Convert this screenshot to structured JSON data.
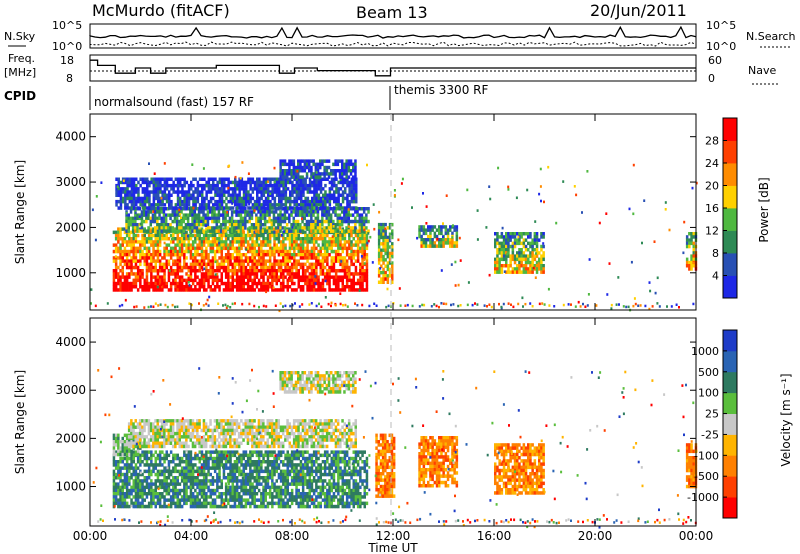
{
  "header": {
    "station": "McMurdo (fitACF)",
    "beam": "Beam 13",
    "date": "20/Jun/2011"
  },
  "summary": {
    "nsky_label": "N.Sky",
    "nsearch_label": "N.Search",
    "freq_label_1": "Freq.",
    "freq_label_2": "[MHz]",
    "nave_label": "Nave",
    "cpid_label": "CPID",
    "nsky_ticks": [
      "10^5",
      "10^0"
    ],
    "nsearch_ticks": [
      "10^5",
      "10^0"
    ],
    "freq_ticks": [
      "18",
      "8"
    ],
    "nave_ticks": [
      "60",
      "0"
    ],
    "cpid_segments": [
      {
        "start": 0.0,
        "end": 12.0,
        "label": "normalsound (fast) 157 RF"
      },
      {
        "start": 12.0,
        "end": 24.0,
        "label": "themis 3300 RF"
      }
    ],
    "freq_series": {
      "x": [
        0,
        0.3,
        0.3,
        1.0,
        1.0,
        1.8,
        1.8,
        2.4,
        2.4,
        3.0,
        3.0,
        5.0,
        5.0,
        7.5,
        7.5,
        8.1,
        8.1,
        9.0,
        9.0,
        11.3,
        11.3,
        11.9,
        11.9,
        24
      ],
      "y": [
        16,
        16,
        14,
        14,
        11,
        11,
        13,
        13,
        11,
        11,
        13,
        13,
        14,
        14,
        11,
        11,
        13,
        13,
        12,
        12,
        10,
        10,
        13,
        13
      ]
    }
  },
  "chart_data": [
    {
      "type": "heatmap",
      "title": "",
      "ylabel": "Slant Range [km]",
      "ylim": [
        180,
        4500
      ],
      "yticks": [
        "1000",
        "2000",
        "3000",
        "4000"
      ],
      "xlim": [
        0,
        24
      ],
      "colorbar_label": "Power [dB]",
      "colorbar_ticks": [
        "4",
        "8",
        "12",
        "16",
        "20",
        "24",
        "28"
      ],
      "colorbar_colors": [
        "#1e28e6",
        "#2850b4",
        "#2e8a55",
        "#4fb840",
        "#ffd000",
        "#ff8c00",
        "#ff4000",
        "#ff0000"
      ],
      "regions": [
        {
          "x0": 0.9,
          "x1": 11.0,
          "y0": 600,
          "y1": 2000,
          "level": 0.85
        },
        {
          "x0": 1.4,
          "x1": 11.0,
          "y0": 1950,
          "y1": 2450,
          "level": 0.35
        },
        {
          "x0": 1.0,
          "x1": 10.5,
          "y0": 2450,
          "y1": 3100,
          "level": 0.12
        },
        {
          "x0": 7.5,
          "x1": 10.5,
          "y0": 3100,
          "y1": 3500,
          "level": 0.12
        },
        {
          "x0": 13.0,
          "x1": 14.5,
          "y0": 1600,
          "y1": 2050,
          "level": 0.45
        },
        {
          "x0": 16.0,
          "x1": 18.0,
          "y0": 1000,
          "y1": 1900,
          "level": 0.5
        },
        {
          "x0": 23.6,
          "x1": 24.0,
          "y0": 1100,
          "y1": 1900,
          "level": 0.6
        },
        {
          "x0": 11.4,
          "x1": 12.0,
          "y0": 800,
          "y1": 2100,
          "level": 0.55
        }
      ]
    },
    {
      "type": "heatmap",
      "title": "",
      "ylabel": "Slant Range [km]",
      "xlabel": "Time UT",
      "ylim": [
        180,
        4500
      ],
      "yticks": [
        "1000",
        "2000",
        "3000",
        "4000"
      ],
      "xlim": [
        0,
        24
      ],
      "xticks": [
        "00:00",
        "04:00",
        "08:00",
        "12:00",
        "16:00",
        "20:00",
        "00:00"
      ],
      "colorbar_label": "Velocity [m s⁻¹]",
      "colorbar_ticks": [
        "1000",
        "500",
        "100",
        "25",
        "-25",
        "-100",
        "-500",
        "-1000"
      ],
      "colorbar_colors": [
        "#1e3cc8",
        "#2a64b4",
        "#2e7a60",
        "#5abe3c",
        "#c8c8c8",
        "#ffb400",
        "#ff8000",
        "#ff4000",
        "#ff0000"
      ],
      "regions": [
        {
          "x0": 0.9,
          "x1": 11.0,
          "y0": 600,
          "y1": 1750,
          "cls": 2
        },
        {
          "x0": 0.9,
          "x1": 2.0,
          "y0": 1700,
          "y1": 2100,
          "cls": 3
        },
        {
          "x0": 1.5,
          "x1": 10.5,
          "y0": 1850,
          "y1": 2400,
          "cls": 4
        },
        {
          "x0": 7.5,
          "x1": 10.5,
          "y0": 3000,
          "y1": 3400,
          "cls": 4
        },
        {
          "x0": 13.0,
          "x1": 14.5,
          "y0": 1000,
          "y1": 2050,
          "cls": 6
        },
        {
          "x0": 16.0,
          "x1": 18.0,
          "y0": 900,
          "y1": 1900,
          "cls": 6
        },
        {
          "x0": 23.6,
          "x1": 24.0,
          "y0": 1000,
          "y1": 1900,
          "cls": 6
        },
        {
          "x0": 11.3,
          "x1": 12.0,
          "y0": 800,
          "y1": 2100,
          "cls": 6
        }
      ]
    }
  ]
}
